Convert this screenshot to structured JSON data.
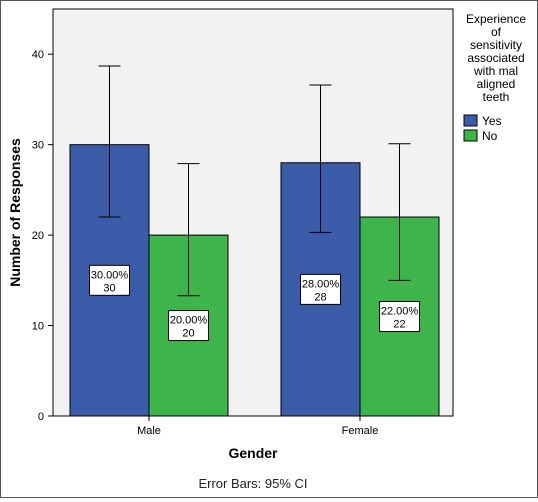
{
  "chart_data": {
    "type": "bar",
    "xlabel": "Gender",
    "ylabel": "Number of Responses",
    "categories": [
      "Male",
      "Female"
    ],
    "ylim": [
      0,
      45
    ],
    "yticks": [
      0,
      10,
      20,
      30,
      40
    ],
    "ytick_labels": [
      "0",
      "10",
      "20",
      "30",
      "40"
    ],
    "series": [
      {
        "name": "Yes",
        "color": "#3b5ca8",
        "values": [
          30,
          28
        ],
        "ci_low": [
          22.0,
          20.3
        ],
        "ci_high": [
          38.7,
          36.6
        ],
        "labels": [
          [
            "30.00%",
            "30"
          ],
          [
            "28.00%",
            "28"
          ]
        ]
      },
      {
        "name": "No",
        "color": "#3db54a",
        "values": [
          20,
          22
        ],
        "ci_low": [
          13.3,
          15.0
        ],
        "ci_high": [
          27.9,
          30.1
        ],
        "labels": [
          [
            "20.00%",
            "20"
          ],
          [
            "22.00%",
            "22"
          ]
        ]
      }
    ],
    "legend": {
      "title_lines": [
        "Experience",
        "of",
        "sensitivity",
        "associated",
        "with mal",
        "aligned",
        "teeth"
      ],
      "placement": "top-right"
    },
    "footnote": "Error Bars: 95% CI",
    "plot_background": "#f2f2f2",
    "grid": false
  }
}
